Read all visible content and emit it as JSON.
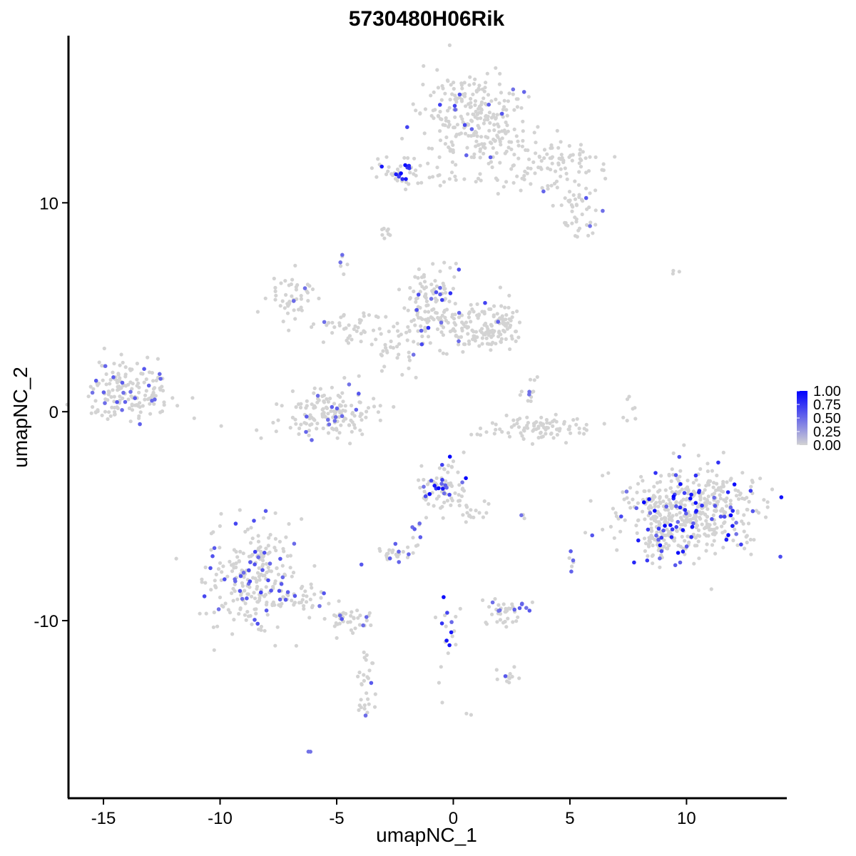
{
  "chart_data": {
    "type": "scatter",
    "title": "5730480H06Rik",
    "xlabel": "umapNC_1",
    "ylabel": "umapNC_2",
    "xlim": [
      -16.5,
      14.3
    ],
    "ylim": [
      -18.5,
      18.0
    ],
    "xticks": [
      -15,
      -10,
      -5,
      0,
      5,
      10
    ],
    "xtick_labels": [
      "-15",
      "-10",
      "-5",
      "0",
      "5",
      "10"
    ],
    "yticks": [
      -10,
      0,
      10
    ],
    "ytick_labels": [
      "-10",
      "0",
      "10"
    ],
    "grid": false,
    "legend": {
      "placement": "right",
      "type": "colorbar",
      "labels": [
        "1.00",
        "0.75",
        "0.50",
        "0.25",
        "0.00"
      ],
      "low_color": "#d3d3d3",
      "high_color": "#0000ff",
      "range": [
        0,
        1
      ]
    },
    "clusters": [
      {
        "cx": 0.9,
        "cy": 14.0,
        "sx": 1.2,
        "sy": 1.1,
        "n": 260,
        "expr_frac": 0.06,
        "max_expr": 0.7
      },
      {
        "cx": 4.2,
        "cy": 11.8,
        "sx": 1.2,
        "sy": 0.7,
        "n": 110,
        "expr_frac": 0.03,
        "max_expr": 0.6
      },
      {
        "cx": 5.3,
        "cy": 9.6,
        "sx": 0.5,
        "sy": 0.5,
        "n": 40,
        "expr_frac": 0.1,
        "max_expr": 0.6
      },
      {
        "cx": -2.3,
        "cy": 11.5,
        "sx": 0.6,
        "sy": 0.4,
        "n": 40,
        "expr_frac": 0.25,
        "max_expr": 1.0
      },
      {
        "cx": -0.2,
        "cy": 11.2,
        "sx": 1.0,
        "sy": 0.2,
        "n": 20,
        "expr_frac": 0.05,
        "max_expr": 0.6
      },
      {
        "cx": -2.8,
        "cy": 8.7,
        "sx": 0.2,
        "sy": 0.2,
        "n": 8,
        "expr_frac": 0.0,
        "max_expr": 0.3
      },
      {
        "cx": -14.1,
        "cy": 1.0,
        "sx": 0.75,
        "sy": 0.75,
        "n": 150,
        "expr_frac": 0.14,
        "max_expr": 0.6
      },
      {
        "cx": -12.6,
        "cy": 0.6,
        "sx": 0.4,
        "sy": 0.4,
        "n": 20,
        "expr_frac": 0.0,
        "max_expr": 0.3
      },
      {
        "cx": -7.0,
        "cy": 5.3,
        "sx": 0.6,
        "sy": 0.6,
        "n": 50,
        "expr_frac": 0.05,
        "max_expr": 0.5
      },
      {
        "cx": -4.5,
        "cy": 4.0,
        "sx": 0.8,
        "sy": 0.4,
        "n": 40,
        "expr_frac": 0.02,
        "max_expr": 0.5
      },
      {
        "cx": -1.0,
        "cy": 5.2,
        "sx": 0.6,
        "sy": 0.9,
        "n": 110,
        "expr_frac": 0.08,
        "max_expr": 0.8
      },
      {
        "cx": 0.5,
        "cy": 4.0,
        "sx": 1.1,
        "sy": 0.5,
        "n": 100,
        "expr_frac": 0.04,
        "max_expr": 0.6
      },
      {
        "cx": 2.0,
        "cy": 4.2,
        "sx": 0.5,
        "sy": 0.6,
        "n": 70,
        "expr_frac": 0.08,
        "max_expr": 0.7
      },
      {
        "cx": -2.5,
        "cy": 3.0,
        "sx": 0.8,
        "sy": 0.8,
        "n": 40,
        "expr_frac": 0.04,
        "max_expr": 0.5
      },
      {
        "cx": -5.4,
        "cy": -0.2,
        "sx": 1.1,
        "sy": 0.55,
        "n": 150,
        "expr_frac": 0.1,
        "max_expr": 0.6
      },
      {
        "cx": 3.5,
        "cy": -0.7,
        "sx": 1.2,
        "sy": 0.3,
        "n": 90,
        "expr_frac": 0.0,
        "max_expr": 0.3
      },
      {
        "cx": 3.3,
        "cy": 1.0,
        "sx": 0.25,
        "sy": 0.4,
        "n": 12,
        "expr_frac": 0.05,
        "max_expr": 0.5
      },
      {
        "cx": 10.2,
        "cy": -4.8,
        "sx": 1.4,
        "sy": 1.1,
        "n": 500,
        "expr_frac": 0.14,
        "max_expr": 1.0
      },
      {
        "cx": 8.8,
        "cy": -6.3,
        "sx": 0.45,
        "sy": 0.45,
        "n": 40,
        "expr_frac": 0.2,
        "max_expr": 1.0
      },
      {
        "cx": -0.5,
        "cy": -3.6,
        "sx": 0.5,
        "sy": 0.6,
        "n": 80,
        "expr_frac": 0.2,
        "max_expr": 1.0
      },
      {
        "cx": 0.8,
        "cy": -4.6,
        "sx": 0.4,
        "sy": 0.5,
        "n": 20,
        "expr_frac": 0.1,
        "max_expr": 0.6
      },
      {
        "cx": -8.7,
        "cy": -7.8,
        "sx": 1.0,
        "sy": 1.3,
        "n": 240,
        "expr_frac": 0.14,
        "max_expr": 0.7
      },
      {
        "cx": -6.5,
        "cy": -8.8,
        "sx": 0.8,
        "sy": 0.3,
        "n": 40,
        "expr_frac": 0.1,
        "max_expr": 0.6
      },
      {
        "cx": -4.5,
        "cy": -10.0,
        "sx": 0.6,
        "sy": 0.35,
        "n": 40,
        "expr_frac": 0.1,
        "max_expr": 0.6
      },
      {
        "cx": -3.8,
        "cy": -13.0,
        "sx": 0.2,
        "sy": 1.1,
        "n": 30,
        "expr_frac": 0.1,
        "max_expr": 0.6
      },
      {
        "cx": -2.6,
        "cy": -6.9,
        "sx": 0.4,
        "sy": 0.25,
        "n": 25,
        "expr_frac": 0.2,
        "max_expr": 0.6
      },
      {
        "cx": -1.7,
        "cy": -5.9,
        "sx": 0.25,
        "sy": 0.4,
        "n": 8,
        "expr_frac": 0.2,
        "max_expr": 0.6
      },
      {
        "cx": -0.3,
        "cy": -10.8,
        "sx": 0.2,
        "sy": 1.0,
        "n": 20,
        "expr_frac": 0.3,
        "max_expr": 1.0
      },
      {
        "cx": 2.3,
        "cy": -9.6,
        "sx": 0.5,
        "sy": 0.35,
        "n": 40,
        "expr_frac": 0.15,
        "max_expr": 0.6
      },
      {
        "cx": 2.3,
        "cy": -12.6,
        "sx": 0.25,
        "sy": 0.25,
        "n": 12,
        "expr_frac": 0.2,
        "max_expr": 0.6
      },
      {
        "cx": 2.9,
        "cy": -5.0,
        "sx": 0.15,
        "sy": 0.1,
        "n": 4,
        "expr_frac": 0.5,
        "max_expr": 0.5
      },
      {
        "cx": 5.0,
        "cy": -7.4,
        "sx": 0.12,
        "sy": 0.3,
        "n": 6,
        "expr_frac": 0.5,
        "max_expr": 0.6
      },
      {
        "cx": 7.7,
        "cy": -0.1,
        "sx": 0.12,
        "sy": 0.5,
        "n": 6,
        "expr_frac": 0.2,
        "max_expr": 0.5
      },
      {
        "cx": 9.4,
        "cy": 6.7,
        "sx": 0.2,
        "sy": 0.1,
        "n": 3,
        "expr_frac": 0.0,
        "max_expr": 0.3
      },
      {
        "cx": -4.7,
        "cy": 7.2,
        "sx": 0.15,
        "sy": 0.3,
        "n": 6,
        "expr_frac": 0.5,
        "max_expr": 0.5
      },
      {
        "cx": -6.2,
        "cy": -16.3,
        "sx": 0.1,
        "sy": 0.1,
        "n": 2,
        "expr_frac": 0.5,
        "max_expr": 0.5
      },
      {
        "cx": 0.6,
        "cy": -14.4,
        "sx": 0.1,
        "sy": 0.1,
        "n": 2,
        "expr_frac": 0.0,
        "max_expr": 0.3
      }
    ]
  }
}
